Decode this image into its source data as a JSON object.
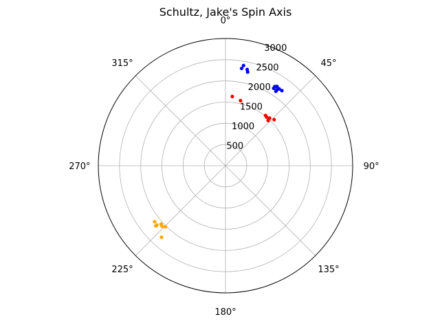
{
  "chart_data": {
    "type": "scatter",
    "projection": "polar",
    "title": "Schultz, Jake's Spin Axis",
    "theta_zero_location": "N",
    "theta_direction": "clockwise",
    "theta_ticks": [
      "0°",
      "45°",
      "90°",
      "135°",
      "180°",
      "225°",
      "270°",
      "315°"
    ],
    "theta_tick_values_deg": [
      0,
      45,
      90,
      135,
      180,
      225,
      270,
      315
    ],
    "r_ticks": [
      "500",
      "1000",
      "1500",
      "2000",
      "2500",
      "3000"
    ],
    "r_tick_values": [
      500,
      1000,
      1500,
      2000,
      2500,
      3000
    ],
    "r_tick_label_angle_deg": 22.5,
    "rlim": [
      0,
      3000
    ],
    "grid": true,
    "series": [
      {
        "color": "#0000ff",
        "points": [
          {
            "theta": 10.2,
            "r": 2400
          },
          {
            "theta": 9.4,
            "r": 2325
          },
          {
            "theta": 12.7,
            "r": 2325
          },
          {
            "theta": 13.3,
            "r": 2270
          },
          {
            "theta": 31.9,
            "r": 2150
          },
          {
            "theta": 31.9,
            "r": 2200
          },
          {
            "theta": 33.0,
            "r": 2230
          },
          {
            "theta": 34.1,
            "r": 2160
          },
          {
            "theta": 34.9,
            "r": 2210
          },
          {
            "theta": 34.1,
            "r": 2120
          },
          {
            "theta": 36.9,
            "r": 2215
          }
        ]
      },
      {
        "color": "#ff0000",
        "points": [
          {
            "theta": 5.6,
            "r": 1640
          },
          {
            "theta": 13.0,
            "r": 1575
          },
          {
            "theta": 38.6,
            "r": 1515
          },
          {
            "theta": 40.3,
            "r": 1500
          },
          {
            "theta": 43.3,
            "r": 1465
          },
          {
            "theta": 42.8,
            "r": 1530
          },
          {
            "theta": 46.6,
            "r": 1580
          }
        ]
      },
      {
        "color": "#ffa500",
        "points": [
          {
            "theta": 221.8,
            "r": 2265
          },
          {
            "theta": 224.5,
            "r": 2020
          },
          {
            "theta": 226.3,
            "r": 2070
          },
          {
            "theta": 229.2,
            "r": 2170
          },
          {
            "theta": 229.2,
            "r": 2140
          },
          {
            "theta": 227.8,
            "r": 2050
          },
          {
            "theta": 231.7,
            "r": 2130
          }
        ]
      }
    ]
  }
}
